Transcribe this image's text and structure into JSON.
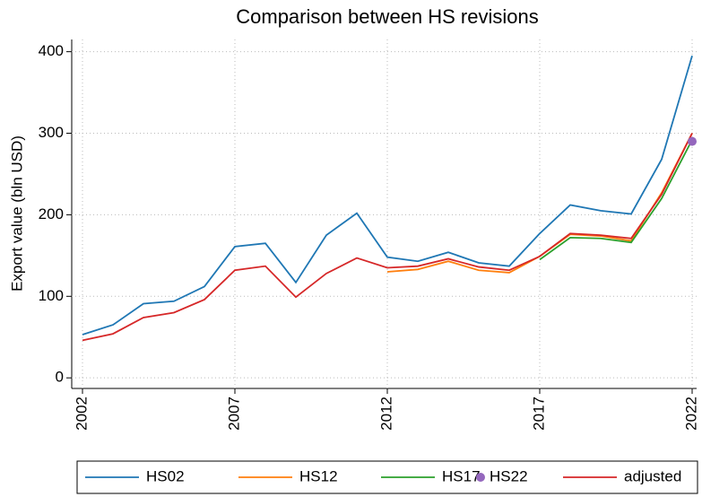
{
  "chart_data": {
    "type": "line",
    "title": "Comparison between HS revisions",
    "y_label": "Export value (bln USD)",
    "x": [
      2002,
      2003,
      2004,
      2005,
      2006,
      2007,
      2008,
      2009,
      2010,
      2011,
      2012,
      2013,
      2014,
      2015,
      2016,
      2017,
      2018,
      2019,
      2020,
      2021,
      2022
    ],
    "series": [
      {
        "name": "HS02",
        "color": "#1f77b4",
        "values": [
          53,
          65,
          91,
          94,
          112,
          161,
          165,
          117,
          175,
          202,
          148,
          143,
          154,
          141,
          137,
          177,
          212,
          205,
          201,
          268,
          395
        ]
      },
      {
        "name": "HS12",
        "color": "#ff7f0e",
        "values": [
          null,
          null,
          null,
          null,
          null,
          null,
          null,
          null,
          null,
          null,
          130,
          133,
          143,
          132,
          129,
          149,
          176,
          174,
          168,
          227,
          300
        ]
      },
      {
        "name": "HS17",
        "color": "#2ca02c",
        "values": [
          null,
          null,
          null,
          null,
          null,
          null,
          null,
          null,
          null,
          null,
          null,
          null,
          null,
          null,
          null,
          145,
          172,
          171,
          166,
          220,
          292
        ]
      },
      {
        "name": "HS22",
        "color": "#9467bd",
        "mode": "markers",
        "values": [
          null,
          null,
          null,
          null,
          null,
          null,
          null,
          null,
          null,
          null,
          null,
          null,
          null,
          null,
          null,
          null,
          null,
          null,
          null,
          null,
          290
        ]
      },
      {
        "name": "adjusted",
        "color": "#d62728",
        "values": [
          46,
          54,
          74,
          80,
          96,
          132,
          137,
          99,
          128,
          147,
          135,
          137,
          146,
          136,
          132,
          149,
          177,
          175,
          171,
          225,
          300
        ]
      }
    ],
    "xlim": [
      2002,
      2022
    ],
    "xticks": [
      2002,
      2007,
      2012,
      2017,
      2022
    ],
    "ylim": [
      -13,
      415
    ],
    "yticks": [
      0,
      100,
      200,
      300,
      400
    ],
    "grid": true,
    "legend": "bottom"
  }
}
